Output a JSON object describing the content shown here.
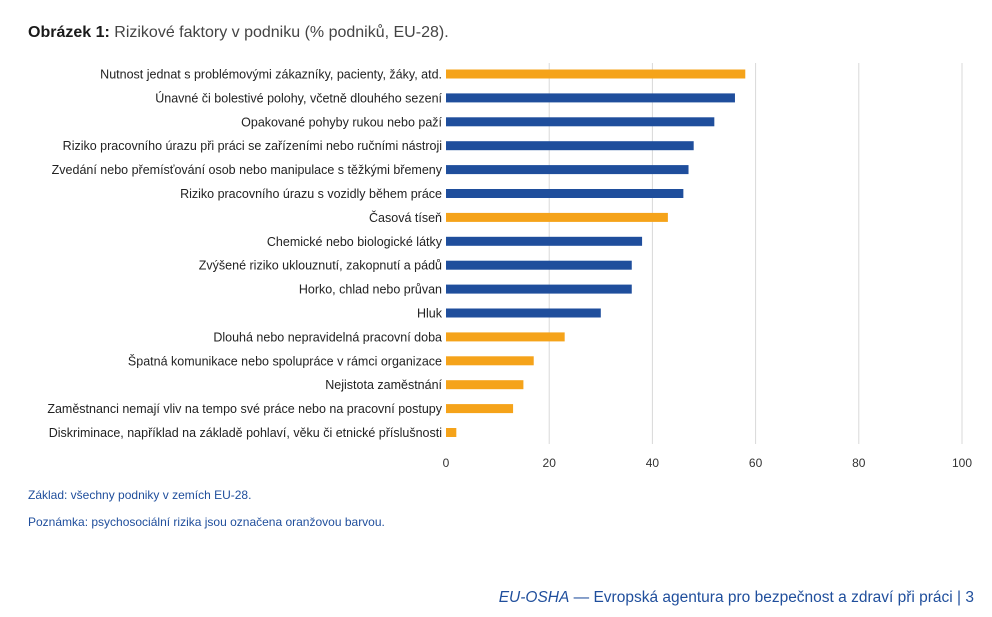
{
  "figure": {
    "title_bold": "Obrázek 1:",
    "title_rest": "Rizikové faktory v podniku (% podniků, EU-28)."
  },
  "chart_data": {
    "type": "bar",
    "orientation": "horizontal",
    "categories": [
      "Nutnost jednat s problémovými zákazníky, pacienty, žáky, atd.",
      "Únavné či bolestivé polohy, včetně dlouhého sezení",
      "Opakované pohyby rukou nebo paží",
      "Riziko pracovního úrazu při práci se zařízeními nebo ručními nástroji",
      "Zvedání nebo přemísťování osob nebo manipulace s těžkými břemeny",
      "Riziko pracovního úrazu s vozidly během práce",
      "Časová tíseň",
      "Chemické nebo biologické látky",
      "Zvýšené riziko uklouznutí, zakopnutí a pádů",
      "Horko, chlad nebo průvan",
      "Hluk",
      "Dlouhá nebo nepravidelná pracovní doba",
      "Špatná komunikace nebo spolupráce v rámci organizace",
      "Nejistota zaměstnání",
      "Zaměstnanci nemají vliv na tempo své práce nebo na pracovní postupy",
      "Diskriminace, například na základě pohlaví, věku či etnické příslušnosti"
    ],
    "values": [
      58,
      56,
      52,
      48,
      47,
      46,
      43,
      38,
      36,
      36,
      30,
      23,
      17,
      15,
      13,
      2
    ],
    "psychosocial": [
      true,
      false,
      false,
      false,
      false,
      false,
      true,
      false,
      false,
      false,
      false,
      true,
      true,
      true,
      true,
      true
    ],
    "colors": {
      "psychosocial": "#f5a31a",
      "other": "#1f4e9c",
      "grid": "#d9d9d9"
    },
    "xlim": [
      0,
      100
    ],
    "xticks": [
      0,
      20,
      40,
      60,
      80,
      100
    ],
    "grid": true
  },
  "notes": {
    "base": "Základ: všechny podniky v zemích EU-28.",
    "remark": "Poznámka: psychosociální rizika jsou označena oranžovou barvou."
  },
  "footer": {
    "brand": "EU-OSHA",
    "text": " — Evropská agentura pro bezpečnost a zdraví při práci | 3"
  }
}
